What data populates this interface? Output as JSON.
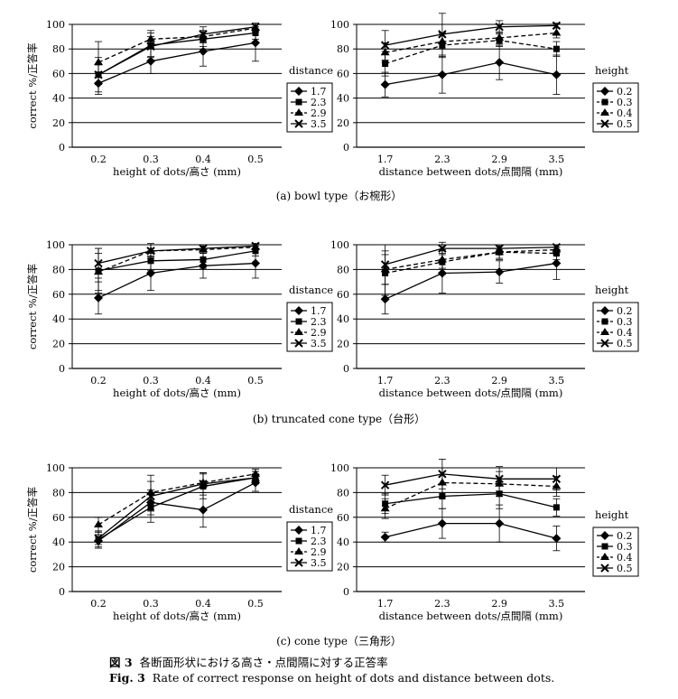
{
  "ylabel": "correct %/正答率",
  "panel_captions": [
    "(a) bowl type（お椀形）",
    "(b) truncated cone type（台形）",
    "(c) cone type（三角形）"
  ],
  "figure_caption": {
    "jp_label": "図 3",
    "jp_text": "各断面形状における高さ・点間隔に対する正答率",
    "en_label": "Fig. 3",
    "en_text": "Rate of correct response on height of dots and distance between dots."
  },
  "colors": {
    "axis": "#000000",
    "grid": "#000000",
    "series": "#000000"
  },
  "chart_data": [
    {
      "type": "line",
      "panel": "a-left",
      "categories": [
        "0.2",
        "0.3",
        "0.4",
        "0.5"
      ],
      "xlabel": "height of dots/高さ (mm)",
      "ylabel": "correct %/正答率",
      "ylim": [
        0,
        100
      ],
      "yticks": [
        0,
        20,
        40,
        60,
        80,
        100
      ],
      "grid": "horizontal",
      "legend_title": "distance",
      "legend_position": "right",
      "series": [
        {
          "name": "1.7",
          "marker": "diamond",
          "dash": "solid",
          "values": [
            52,
            70,
            78,
            85
          ],
          "err": [
            9,
            10,
            12,
            15
          ]
        },
        {
          "name": "2.3",
          "marker": "square",
          "dash": "solid",
          "values": [
            59,
            83,
            88,
            93
          ],
          "err": [
            14,
            10,
            6,
            5
          ]
        },
        {
          "name": "2.9",
          "marker": "triangle",
          "dash": "dashed",
          "values": [
            69,
            88,
            90,
            97
          ],
          "err": [
            17,
            7,
            5,
            3
          ]
        },
        {
          "name": "3.5",
          "marker": "cross",
          "dash": "solid",
          "values": [
            59,
            82,
            92,
            98
          ],
          "err": [
            8,
            8,
            6,
            3
          ]
        }
      ]
    },
    {
      "type": "line",
      "panel": "a-right",
      "categories": [
        "1.7",
        "2.3",
        "2.9",
        "3.5"
      ],
      "xlabel": "distance between dots/点間隔 (mm)",
      "ylabel": "",
      "ylim": [
        0,
        100
      ],
      "yticks": [
        0,
        20,
        40,
        60,
        80,
        100
      ],
      "grid": "horizontal",
      "legend_title": "height",
      "legend_position": "right",
      "series": [
        {
          "name": "0.2",
          "marker": "diamond",
          "dash": "solid",
          "values": [
            51,
            59,
            69,
            59
          ],
          "err": [
            10,
            15,
            14,
            16
          ]
        },
        {
          "name": "0.3",
          "marker": "square",
          "dash": "dashed",
          "values": [
            68,
            83,
            87,
            80
          ],
          "err": [
            10,
            10,
            5,
            6
          ]
        },
        {
          "name": "0.4",
          "marker": "triangle",
          "dash": "dashed",
          "values": [
            77,
            86,
            89,
            93
          ],
          "err": [
            8,
            6,
            5,
            4
          ]
        },
        {
          "name": "0.5",
          "marker": "cross",
          "dash": "solid",
          "values": [
            83,
            92,
            98,
            99
          ],
          "err": [
            12,
            17,
            5,
            2
          ]
        }
      ]
    },
    {
      "type": "line",
      "panel": "b-left",
      "categories": [
        "0.2",
        "0.3",
        "0.4",
        "0.5"
      ],
      "xlabel": "height of dots/高さ (mm)",
      "ylabel": "correct %/正答率",
      "ylim": [
        0,
        100
      ],
      "yticks": [
        0,
        20,
        40,
        60,
        80,
        100
      ],
      "grid": "horizontal",
      "legend_title": "distance",
      "legend_position": "right",
      "series": [
        {
          "name": "1.7",
          "marker": "diamond",
          "dash": "solid",
          "values": [
            57,
            77,
            83,
            85
          ],
          "err": [
            13,
            14,
            10,
            12
          ]
        },
        {
          "name": "2.3",
          "marker": "square",
          "dash": "solid",
          "values": [
            79,
            87,
            88,
            95
          ],
          "err": [
            18,
            8,
            7,
            4
          ]
        },
        {
          "name": "2.9",
          "marker": "triangle",
          "dash": "dashed",
          "values": [
            78,
            95,
            96,
            98
          ],
          "err": [
            15,
            5,
            3,
            2
          ]
        },
        {
          "name": "3.5",
          "marker": "cross",
          "dash": "solid",
          "values": [
            85,
            95,
            97,
            99
          ],
          "err": [
            12,
            6,
            3,
            2
          ]
        }
      ]
    },
    {
      "type": "line",
      "panel": "b-right",
      "categories": [
        "1.7",
        "2.3",
        "2.9",
        "3.5"
      ],
      "xlabel": "distance between dots/点間隔 (mm)",
      "ylabel": "",
      "ylim": [
        0,
        100
      ],
      "yticks": [
        0,
        20,
        40,
        60,
        80,
        100
      ],
      "grid": "horizontal",
      "legend_title": "height",
      "legend_position": "right",
      "series": [
        {
          "name": "0.2",
          "marker": "diamond",
          "dash": "solid",
          "values": [
            56,
            77,
            78,
            85
          ],
          "err": [
            12,
            16,
            9,
            13
          ]
        },
        {
          "name": "0.3",
          "marker": "square",
          "dash": "dashed",
          "values": [
            77,
            86,
            94,
            93
          ],
          "err": [
            18,
            10,
            6,
            5
          ]
        },
        {
          "name": "0.4",
          "marker": "triangle",
          "dash": "dashed",
          "values": [
            80,
            88,
            94,
            96
          ],
          "err": [
            12,
            7,
            5,
            4
          ]
        },
        {
          "name": "0.5",
          "marker": "cross",
          "dash": "solid",
          "values": [
            84,
            97,
            97,
            98
          ],
          "err": [
            16,
            5,
            3,
            2
          ]
        }
      ]
    },
    {
      "type": "line",
      "panel": "c-left",
      "categories": [
        "0.2",
        "0.3",
        "0.4",
        "0.5"
      ],
      "xlabel": "height of dots/高さ (mm)",
      "ylabel": "correct %/正答率",
      "ylim": [
        0,
        100
      ],
      "yticks": [
        0,
        20,
        40,
        60,
        80,
        100
      ],
      "grid": "horizontal",
      "legend_title": "distance",
      "legend_position": "right",
      "series": [
        {
          "name": "1.7",
          "marker": "diamond",
          "dash": "solid",
          "values": [
            41,
            72,
            66,
            88
          ],
          "err": [
            5,
            10,
            14,
            7
          ]
        },
        {
          "name": "2.3",
          "marker": "square",
          "dash": "solid",
          "values": [
            42,
            68,
            85,
            92
          ],
          "err": [
            7,
            12,
            10,
            5
          ]
        },
        {
          "name": "2.9",
          "marker": "triangle",
          "dash": "dashed",
          "values": [
            54,
            80,
            88,
            95
          ],
          "err": [
            6,
            14,
            8,
            4
          ]
        },
        {
          "name": "3.5",
          "marker": "cross",
          "dash": "solid",
          "values": [
            43,
            77,
            87,
            92
          ],
          "err": [
            5,
            12,
            9,
            5
          ]
        }
      ]
    },
    {
      "type": "line",
      "panel": "c-right",
      "categories": [
        "1.7",
        "2.3",
        "2.9",
        "3.5"
      ],
      "xlabel": "distance between dots/点間隔 (mm)",
      "ylabel": "",
      "ylim": [
        0,
        100
      ],
      "yticks": [
        0,
        20,
        40,
        60,
        80,
        100
      ],
      "grid": "horizontal",
      "legend_title": "height",
      "legend_position": "right",
      "series": [
        {
          "name": "0.2",
          "marker": "diamond",
          "dash": "solid",
          "values": [
            44,
            55,
            55,
            43
          ],
          "err": [
            4,
            12,
            15,
            10
          ]
        },
        {
          "name": "0.3",
          "marker": "square",
          "dash": "solid",
          "values": [
            71,
            77,
            79,
            68
          ],
          "err": [
            8,
            10,
            12,
            7
          ]
        },
        {
          "name": "0.4",
          "marker": "triangle",
          "dash": "dashed",
          "values": [
            67,
            88,
            87,
            85
          ],
          "err": [
            8,
            12,
            10,
            8
          ]
        },
        {
          "name": "0.5",
          "marker": "cross",
          "dash": "solid",
          "values": [
            86,
            95,
            91,
            91
          ],
          "err": [
            8,
            12,
            10,
            9
          ]
        }
      ]
    }
  ]
}
